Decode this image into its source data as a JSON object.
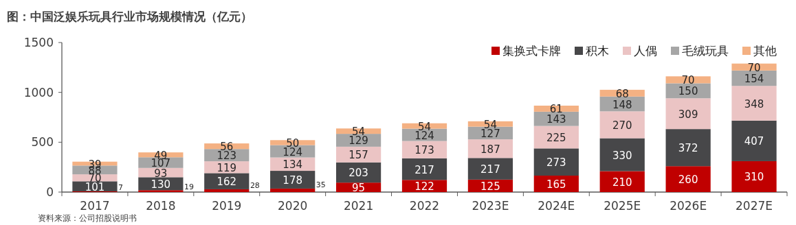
{
  "chart_data": {
    "type": "bar",
    "stacked": true,
    "title": "图：中国泛娱乐玩具行业市场规模情况（亿元）",
    "categories": [
      "2017",
      "2018",
      "2019",
      "2020",
      "2021",
      "2022",
      "2023E",
      "2024E",
      "2025E",
      "2026E",
      "2027E"
    ],
    "series": [
      {
        "name": "集换式卡牌",
        "color": "#c00000",
        "values": [
          7,
          19,
          28,
          35,
          95,
          122,
          125,
          165,
          210,
          260,
          310
        ]
      },
      {
        "name": "积木",
        "color": "#474749",
        "values": [
          101,
          130,
          162,
          178,
          203,
          217,
          217,
          273,
          330,
          372,
          407
        ]
      },
      {
        "name": "人偶",
        "color": "#ebc4c4",
        "values": [
          70,
          93,
          119,
          134,
          157,
          173,
          187,
          225,
          270,
          309,
          348
        ]
      },
      {
        "name": "毛绒玩具",
        "color": "#a6a6a6",
        "values": [
          88,
          107,
          123,
          124,
          129,
          124,
          127,
          143,
          148,
          150,
          154
        ]
      },
      {
        "name": "其他",
        "color": "#f4b183",
        "values": [
          39,
          49,
          56,
          50,
          54,
          54,
          54,
          61,
          68,
          70,
          70
        ]
      }
    ],
    "ylim": [
      0,
      1500
    ],
    "yticks": [
      0,
      500,
      1000,
      1500
    ],
    "data_labels": true,
    "grid": false,
    "legend": "top right",
    "annotations": [
      "资料来源：公司招股说明书"
    ]
  }
}
